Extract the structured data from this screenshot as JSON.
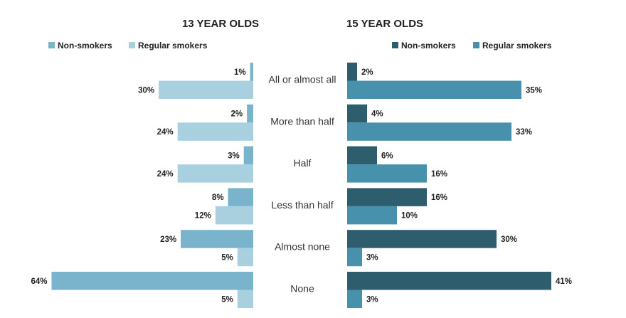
{
  "chart_data": {
    "type": "bar",
    "orientation": "horizontal",
    "categories": [
      "All or almost all",
      "More than half",
      "Half",
      "Less than half",
      "Almost none",
      "None"
    ],
    "panels": [
      {
        "title": "13 YEAR OLDS",
        "direction": "left",
        "series": [
          {
            "name": "Non-smokers",
            "color": "#7ab3cc",
            "values": [
              1,
              2,
              3,
              8,
              23,
              64
            ],
            "labels": [
              "1%",
              "2%",
              "3%",
              "8%",
              "23%",
              "64%"
            ]
          },
          {
            "name": "Regular smokers",
            "color": "#a9d0df",
            "values": [
              30,
              24,
              24,
              12,
              5,
              5
            ],
            "labels": [
              "30%",
              "24%",
              "24%",
              "12%",
              "5%",
              "5%"
            ]
          }
        ]
      },
      {
        "title": "15 YEAR OLDS",
        "direction": "right",
        "series": [
          {
            "name": "Non-smokers",
            "color": "#2e5e6e",
            "values": [
              2,
              4,
              6,
              16,
              30,
              41
            ],
            "labels": [
              "2%",
              "4%",
              "6%",
              "16%",
              "30%",
              "41%"
            ]
          },
          {
            "name": "Regular smokers",
            "color": "#4891ac",
            "values": [
              35,
              33,
              16,
              10,
              3,
              3
            ],
            "labels": [
              "35%",
              "33%",
              "16%",
              "10%",
              "3%",
              "3%"
            ]
          }
        ]
      }
    ],
    "legend_position": "top",
    "grid": false
  }
}
